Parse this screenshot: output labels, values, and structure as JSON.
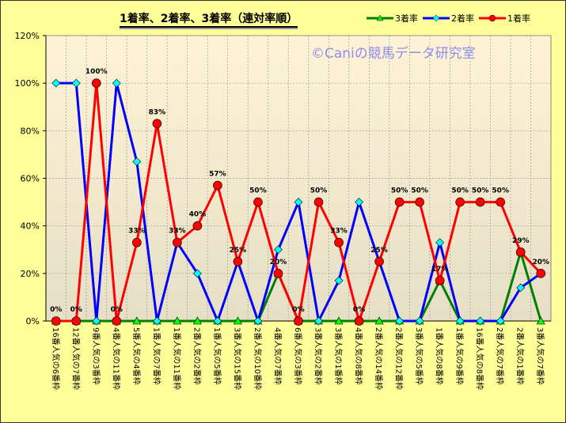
{
  "chart_data": {
    "type": "line",
    "title": "1着率、2着率、3着率（連対率順）",
    "watermark": "©Caniの競馬データ研究室",
    "categories": [
      "16番人気の6番枠",
      "12番人気の7番枠",
      "9番人気の3番枠",
      "4番人気の11番枠",
      "5番人気の4番枠",
      "1番人気の7番枠",
      "1番人気の11番枠",
      "2番人気の2番枠",
      "1番人気の5番枠",
      "3番人気の15番枠",
      "2番人気の10番枠",
      "4番人気の7番枠",
      "6番人気の3番枠",
      "3番人気の2番枠",
      "3番人気の1番枠",
      "4番人気の8番枠",
      "2番人気の14番枠",
      "2番人気の12番枠",
      "3番人気の5番枠",
      "1番人気の8番枠",
      "1番人気の9番枠",
      "16番人気の8番枠",
      "2番人気の7番枠",
      "2番人気の1番枠",
      "3番人気の7番枠"
    ],
    "ylim": [
      0,
      120
    ],
    "yticks": [
      "0%",
      "20%",
      "40%",
      "60%",
      "80%",
      "100%",
      "120%"
    ],
    "grid": true,
    "legend_position": "top-right",
    "series": [
      {
        "name": "3着率",
        "color": "#008000",
        "marker": "triangle",
        "values": [
          0,
          0,
          0,
          0,
          0,
          0,
          0,
          0,
          0,
          0,
          0,
          20,
          0,
          0,
          0,
          0,
          0,
          0,
          0,
          17,
          0,
          0,
          0,
          29,
          0
        ]
      },
      {
        "name": "2着率",
        "color": "#0000FF",
        "marker_fill": "#00FFFF",
        "marker": "diamond",
        "values": [
          100,
          100,
          0,
          100,
          67,
          0,
          33,
          20,
          0,
          25,
          0,
          30,
          50,
          0,
          17,
          50,
          25,
          0,
          0,
          33,
          0,
          0,
          0,
          14,
          20
        ]
      },
      {
        "name": "1着率",
        "color": "#FF0000",
        "marker": "circle",
        "values": [
          0,
          0,
          100,
          0,
          33,
          83,
          33,
          40,
          57,
          25,
          50,
          20,
          0,
          50,
          33,
          0,
          25,
          50,
          50,
          17,
          50,
          50,
          50,
          29,
          20
        ],
        "data_labels": [
          "0%",
          "0%",
          "100%",
          "0%",
          "33%",
          "83%",
          "33%",
          "40%",
          "57%",
          "25%",
          "50%",
          "20%",
          "0%",
          "50%",
          "33%",
          "0%",
          "25%",
          "50%",
          "50%",
          "17%",
          "50%",
          "50%",
          "50%",
          "29%",
          "20%"
        ]
      }
    ]
  }
}
